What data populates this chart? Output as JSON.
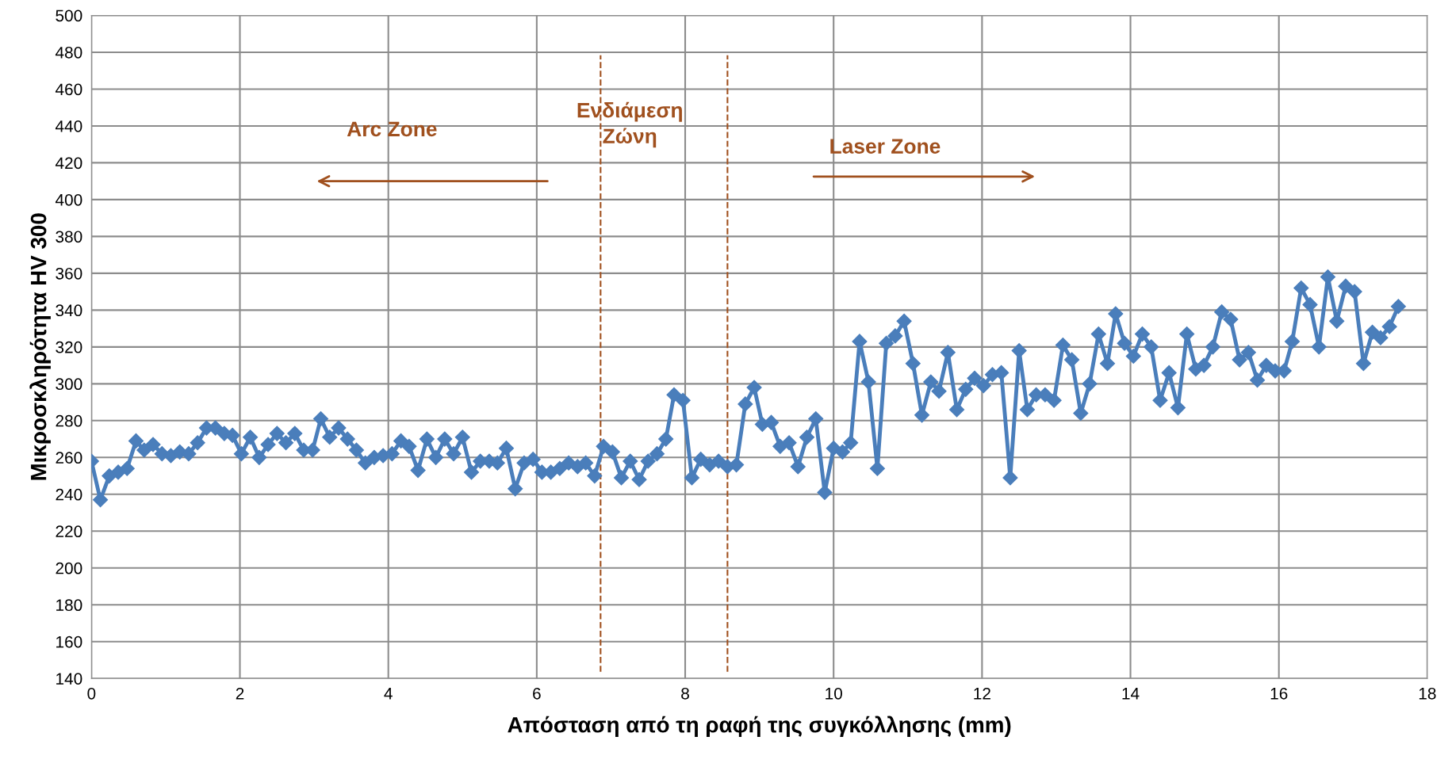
{
  "chart_data": {
    "type": "line",
    "xlabel": "Απόσταση από τη ραφή της συγκόλλησης (mm)",
    "ylabel": "Μικροσκληρότητα HV 300",
    "xlim": [
      0,
      18
    ],
    "xticks": [
      0,
      2,
      4,
      6,
      8,
      10,
      12,
      14,
      16,
      18
    ],
    "ylim": [
      140,
      500
    ],
    "yticks": [
      140,
      160,
      180,
      200,
      220,
      240,
      260,
      280,
      300,
      320,
      340,
      360,
      380,
      400,
      420,
      440,
      460,
      480,
      500
    ],
    "grid": true,
    "marker": "diamond",
    "line_style": "solid",
    "series": [
      {
        "color": "#4a7ebb",
        "x": [
          0,
          0.12,
          0.24,
          0.36,
          0.48,
          0.6,
          0.71,
          0.83,
          0.95,
          1.07,
          1.19,
          1.31,
          1.43,
          1.55,
          1.67,
          1.79,
          1.9,
          2.02,
          2.14,
          2.26,
          2.38,
          2.5,
          2.62,
          2.74,
          2.86,
          2.98,
          3.09,
          3.21,
          3.33,
          3.45,
          3.57,
          3.69,
          3.81,
          3.93,
          4.05,
          4.17,
          4.28,
          4.4,
          4.52,
          4.64,
          4.76,
          4.88,
          5.0,
          5.12,
          5.24,
          5.36,
          5.47,
          5.59,
          5.71,
          5.83,
          5.95,
          6.07,
          6.19,
          6.31,
          6.43,
          6.55,
          6.66,
          6.78,
          6.9,
          7.02,
          7.14,
          7.26,
          7.38,
          7.5,
          7.62,
          7.74,
          7.85,
          7.97,
          8.09,
          8.21,
          8.33,
          8.45,
          8.57,
          8.69,
          8.81,
          8.93,
          9.04,
          9.16,
          9.28,
          9.4,
          9.52,
          9.64,
          9.76,
          9.88,
          10.0,
          10.12,
          10.23,
          10.35,
          10.47,
          10.59,
          10.71,
          10.83,
          10.95,
          11.07,
          11.19,
          11.31,
          11.42,
          11.54,
          11.66,
          11.78,
          11.9,
          12.02,
          12.14,
          12.26,
          12.38,
          12.5,
          12.61,
          12.73,
          12.85,
          12.97,
          13.09,
          13.21,
          13.33,
          13.45,
          13.57,
          13.69,
          13.8,
          13.92,
          14.04,
          14.16,
          14.28,
          14.4,
          14.52,
          14.64,
          14.76,
          14.88,
          14.99,
          15.11,
          15.23,
          15.35,
          15.47,
          15.59,
          15.71,
          15.83,
          15.95,
          16.07,
          16.18,
          16.3,
          16.42,
          16.54,
          16.66,
          16.78,
          16.9,
          17.02,
          17.14,
          17.26,
          17.37,
          17.49,
          17.61
        ],
        "values": [
          258,
          237,
          250,
          252,
          254,
          269,
          264,
          267,
          262,
          261,
          263,
          262,
          268,
          276,
          276,
          273,
          272,
          262,
          271,
          260,
          267,
          273,
          268,
          273,
          264,
          264,
          281,
          271,
          276,
          270,
          264,
          257,
          260,
          261,
          262,
          269,
          266,
          253,
          270,
          260,
          270,
          262,
          271,
          252,
          258,
          258,
          257,
          265,
          243,
          257,
          259,
          252,
          252,
          254,
          257,
          255,
          257,
          250,
          266,
          263,
          249,
          258,
          248,
          258,
          262,
          270,
          294,
          291,
          249,
          259,
          256,
          258,
          255,
          256,
          289,
          298,
          278,
          279,
          266,
          268,
          255,
          271,
          281,
          241,
          265,
          263,
          268,
          323,
          301,
          254,
          322,
          326,
          334,
          311,
          283,
          301,
          296,
          317,
          286,
          297,
          303,
          299,
          305,
          306,
          249,
          318,
          286,
          294,
          294,
          291,
          321,
          313,
          284,
          300,
          327,
          311,
          338,
          322,
          315,
          327,
          320,
          291,
          306,
          287,
          327,
          308,
          310,
          320,
          339,
          335,
          313,
          317,
          302,
          310,
          307,
          307,
          323,
          352,
          343,
          320,
          358,
          334,
          353,
          350,
          311,
          328,
          325,
          331,
          342
        ]
      }
    ],
    "ref_lines": [
      {
        "axis": "x",
        "value": 6.86,
        "color": "#a0501e",
        "line_style": "dashed"
      },
      {
        "axis": "x",
        "value": 8.57,
        "color": "#a0501e",
        "line_style": "dashed"
      }
    ],
    "annotations": [
      "Arc Zone",
      "Ενδιάμεση\nΖώνη",
      "Laser Zone"
    ]
  }
}
